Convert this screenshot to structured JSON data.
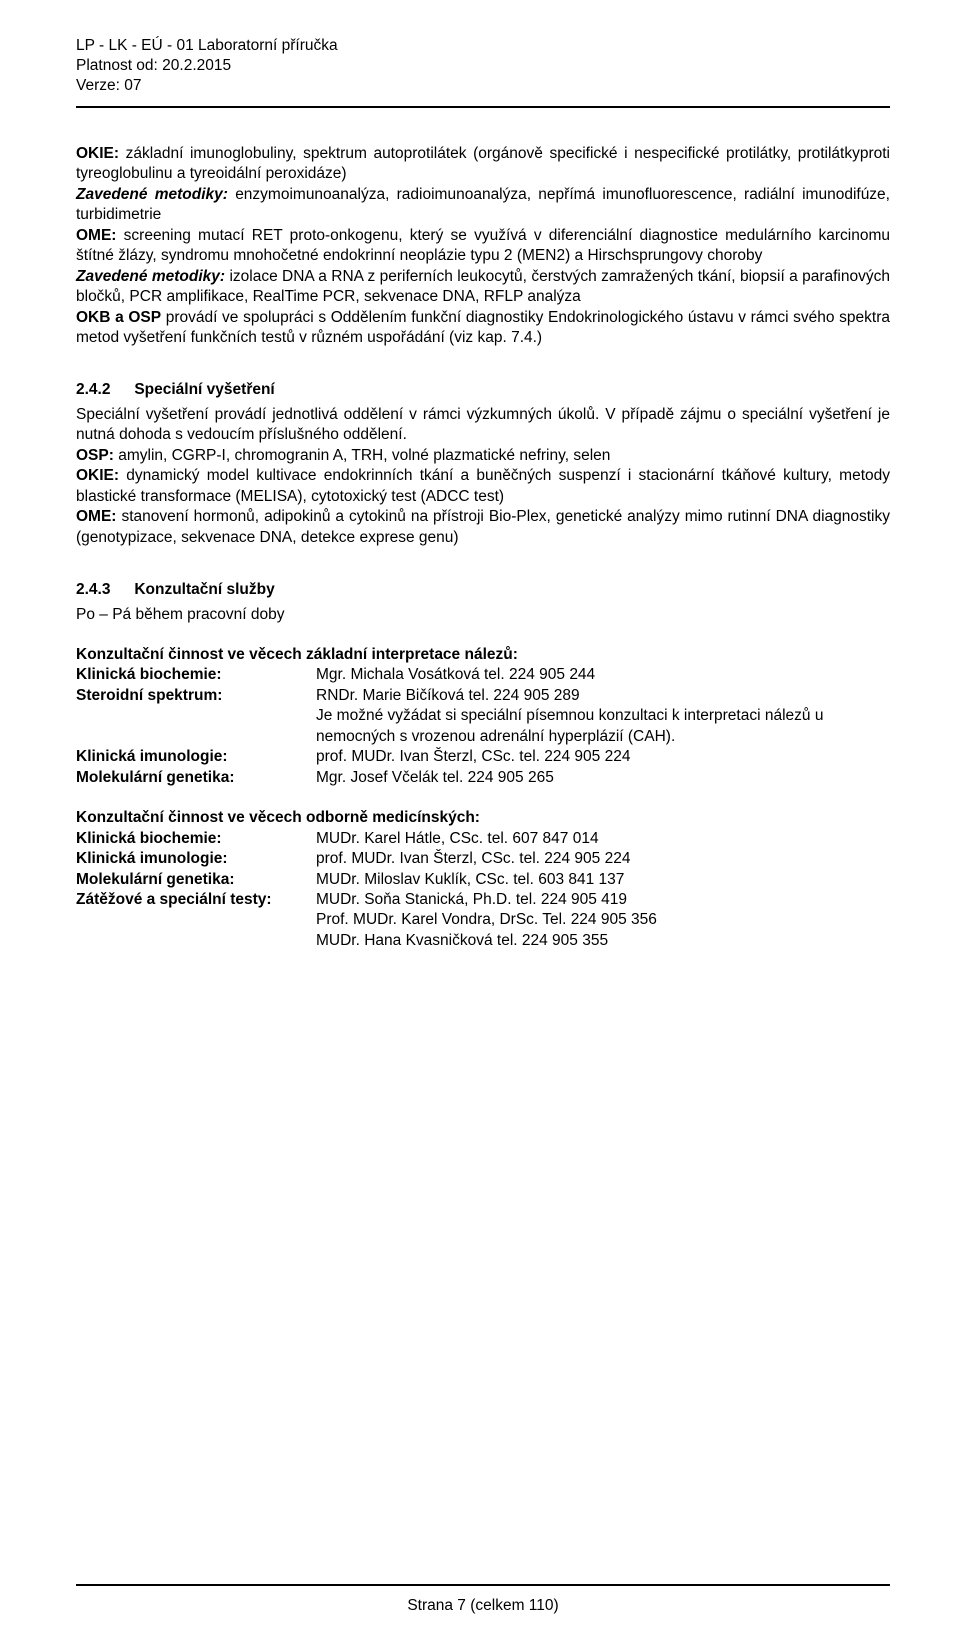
{
  "doc": {
    "colors": {
      "text": "#000000",
      "bg": "#ffffff",
      "rule": "#000000"
    },
    "font": {
      "family": "Arial",
      "body_size_pt": 11.5,
      "line_height": 1.32
    },
    "header": {
      "l1": "LP - LK - EÚ - 01 Laboratorní příručka",
      "l2": "Platnost od: 20.2.2015",
      "l3": "Verze: 07"
    },
    "p1": {
      "okie_label": "OKIE:",
      "okie_text": " základní imunoglobuliny, spektrum autoprotilátek (orgánově specifické i nespecifické protilátky, protilátkyproti tyreoglobulinu a tyreoidální peroxidáze)",
      "z1_label": "Zavedené metodiky:",
      "z1_text": " enzymoimunoanalýza, radioimunoanalýza, nepřímá imunofluorescence, radiální imunodifúze, turbidimetrie",
      "ome_label": "OME:",
      "ome_text": " screening mutací RET proto-onkogenu, který se využívá v diferenciální diagnostice medulárního karcinomu štítné žlázy, syndromu mnohočetné endokrinní neoplázie typu 2 (MEN2) a Hirschsprungovy choroby",
      "z2_label": "Zavedené metodiky:",
      "z2_text": " izolace DNA a RNA z periferních leukocytů, čerstvých zamražených tkání, biopsií a parafinových bločků, PCR amplifikace, RealTime PCR, sekvenace DNA, RFLP analýza",
      "okb_label": "OKB a OSP",
      "okb_text": " provádí ve spolupráci s Oddělením funkční diagnostiky Endokrinologického ústavu v rámci svého spektra metod vyšetření funkčních testů v různém uspořádání (viz kap. 7.4.)"
    },
    "s242": {
      "num": "2.4.2",
      "title": "Speciální vyšetření",
      "intro": "Speciální vyšetření provádí jednotlivá oddělení v rámci výzkumných úkolů. V případě zájmu o speciální vyšetření je nutná dohoda s vedoucím příslušného oddělení.",
      "osp_label": "OSP:",
      "osp_text": " amylin, CGRP-I, chromogranin A, TRH, volné plazmatické nefriny, selen",
      "okie_label": "OKIE:",
      "okie_text": " dynamický model kultivace endokrinních tkání a buněčných suspenzí i stacionární tkáňové kultury, metody blastické transformace (MELISA), cytotoxický test (ADCC test)",
      "ome_label": "OME:",
      "ome_text": " stanovení hormonů, adipokinů a cytokinů na přístroji Bio-Plex, genetické analýzy mimo rutinní DNA diagnostiky (genotypizace, sekvenace DNA, detekce exprese genu)"
    },
    "s243": {
      "num": "2.4.3",
      "title": "Konzultační služby",
      "po_pa": "Po – Pá během pracovní doby",
      "block1_title": "Konzultační činnost ve věcech základní interpretace nálezů:",
      "rows1": [
        {
          "label": "Klinická biochemie:",
          "value": "Mgr. Michala Vosátková tel. 224 905 244"
        },
        {
          "label": "Steroidní spektrum:",
          "value": "RNDr. Marie Bičíková tel. 224 905 289"
        }
      ],
      "extra1": "Je možné vyžádat si speciální písemnou konzultaci k interpretaci nálezů u nemocných s vrozenou adrenální hyperplázií (CAH).",
      "rows1b": [
        {
          "label": "Klinická imunologie:",
          "value": "prof. MUDr. Ivan Šterzl, CSc.  tel. 224 905 224"
        },
        {
          "label": "Molekulární genetika:",
          "value": "Mgr. Josef Včelák  tel. 224 905 265"
        }
      ],
      "block2_title": "Konzultační činnost ve věcech odborně medicínských:",
      "rows2": [
        {
          "label": "Klinická biochemie:",
          "value": "MUDr. Karel Hátle, CSc. tel. 607 847 014"
        },
        {
          "label": "Klinická imunologie:",
          "value": "prof. MUDr. Ivan Šterzl, CSc. tel. 224 905 224"
        },
        {
          "label": "Molekulární genetika:",
          "value": "MUDr. Miloslav Kuklík, CSc. tel. 603 841 137"
        },
        {
          "label": "Zátěžové a speciální testy:",
          "value": "MUDr. Soňa Stanická, Ph.D. tel. 224 905 419"
        }
      ],
      "extra2a": "Prof. MUDr. Karel Vondra, DrSc. Tel. 224 905 356",
      "extra2b": "MUDr. Hana Kvasničková tel. 224 905 355"
    },
    "footer": "Strana 7 (celkem 110)"
  }
}
